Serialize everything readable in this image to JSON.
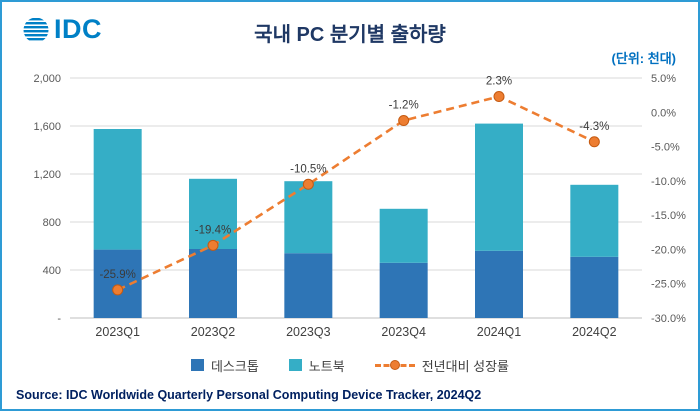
{
  "logo": {
    "text": "IDC"
  },
  "header": {
    "title": "국내 PC 분기별 출하량",
    "unit_label": "(단위: 천대)"
  },
  "footer": {
    "source": "Source: IDC Worldwide Quarterly Personal Computing Device Tracker, 2024Q2"
  },
  "colors": {
    "desktop_bar": "#2E75B6",
    "notebook_bar": "#35AEC6",
    "growth_line": "#ED7D31",
    "growth_dot_edge": "#C55A11",
    "grid": "#D9D9D9",
    "axis_text": "#595959",
    "category_text": "#404040",
    "data_label_text": "#3B3B3B",
    "title_text": "#1F3864",
    "border": "#2E9BD5"
  },
  "chart_data": {
    "type": "bar",
    "subtype": "stacked-bar-with-line",
    "title": "국내 PC 분기별 출하량",
    "unit": "천대",
    "categories": [
      "2023Q1",
      "2023Q2",
      "2023Q3",
      "2023Q4",
      "2024Q1",
      "2024Q2"
    ],
    "series": [
      {
        "name": "데스크톱",
        "type": "bar",
        "axis": "left",
        "values": [
          570,
          575,
          540,
          460,
          560,
          510
        ]
      },
      {
        "name": "노트북",
        "type": "bar",
        "axis": "left",
        "values": [
          1005,
          585,
          600,
          450,
          1060,
          600
        ]
      },
      {
        "name": "전년대비 성장률",
        "type": "line",
        "axis": "right",
        "values": [
          -25.9,
          -19.4,
          -10.5,
          -1.2,
          2.3,
          -4.3
        ],
        "labels": [
          "-25.9%",
          "-19.4%",
          "-10.5%",
          "-1.2%",
          "2.3%",
          "-4.3%"
        ]
      }
    ],
    "totals": [
      1575,
      1160,
      1140,
      910,
      1620,
      1110
    ],
    "left_axis": {
      "min": 0,
      "max": 2000,
      "step": 400,
      "tick_labels": [
        "2,000",
        "1,600",
        "1,200",
        "800",
        "400",
        "-"
      ]
    },
    "right_axis": {
      "min": -30,
      "max": 5,
      "step": 5,
      "tick_labels": [
        "5.0%",
        "0.0%",
        "-5.0%",
        "-10.0%",
        "-15.0%",
        "-20.0%",
        "-25.0%",
        "-30.0%"
      ]
    },
    "grid": true,
    "legend_position": "bottom"
  }
}
